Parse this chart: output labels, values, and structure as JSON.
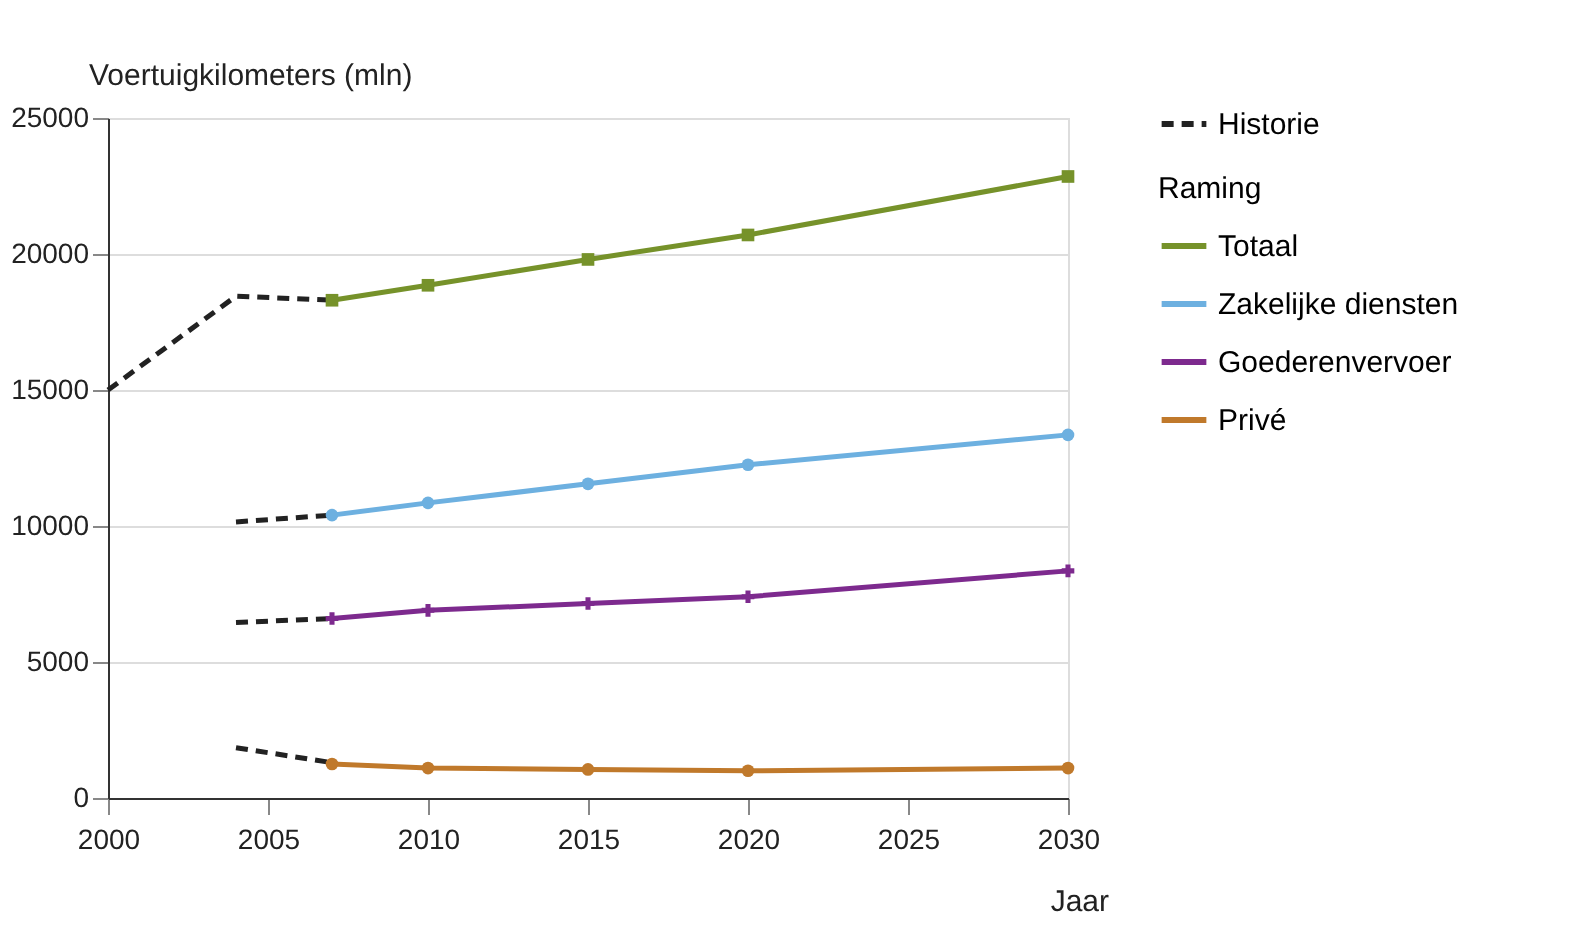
{
  "chart_data": {
    "type": "line",
    "xlabel": "Jaar",
    "ylabel": "Voertuigkilometers (mln)",
    "legend_title": "Raming",
    "xlim": [
      2000,
      2030
    ],
    "xticks": [
      2000,
      2005,
      2010,
      2015,
      2020,
      2025,
      2030
    ],
    "ylim": [
      0,
      25000
    ],
    "yticks": [
      0,
      5000,
      10000,
      15000,
      20000,
      25000
    ],
    "grid": "y",
    "legend": "top right",
    "series": [
      {
        "name": "Historie",
        "color": "#222222",
        "line_style": "dashed",
        "marker": "none",
        "x": [
          2000,
          2004,
          2007
        ],
        "values": [
          15000,
          18450,
          18300
        ]
      },
      {
        "color": "#222222",
        "line_style": "dashed",
        "marker": "none",
        "x": [
          2004,
          2007
        ],
        "values": [
          10150,
          10400
        ]
      },
      {
        "color": "#222222",
        "line_style": "dashed",
        "marker": "none",
        "x": [
          2004,
          2007
        ],
        "values": [
          6450,
          6600
        ]
      },
      {
        "color": "#222222",
        "line_style": "dashed",
        "marker": "none",
        "x": [
          2004,
          2007
        ],
        "values": [
          1850,
          1300
        ]
      },
      {
        "name": "Totaal",
        "color": "#76922a",
        "line_style": "solid",
        "marker": "square",
        "x": [
          2007,
          2010,
          2015,
          2020,
          2030
        ],
        "values": [
          18300,
          18850,
          19800,
          20700,
          22850
        ]
      },
      {
        "name": "Zakelijke diensten",
        "color": "#6db0e0",
        "line_style": "solid",
        "marker": "circle",
        "x": [
          2007,
          2010,
          2015,
          2020,
          2030
        ],
        "values": [
          10400,
          10850,
          11550,
          12250,
          13350
        ]
      },
      {
        "name": "Goederenvervoer",
        "color": "#7d2a8e",
        "line_style": "solid",
        "marker": "cross",
        "x": [
          2007,
          2010,
          2015,
          2020,
          2030
        ],
        "values": [
          6600,
          6900,
          7150,
          7400,
          8350
        ]
      },
      {
        "name": "Privé",
        "color": "#c0792b",
        "line_style": "solid",
        "marker": "circle",
        "x": [
          2007,
          2010,
          2015,
          2020,
          2030
        ],
        "values": [
          1250,
          1100,
          1050,
          1000,
          1100
        ]
      }
    ]
  }
}
